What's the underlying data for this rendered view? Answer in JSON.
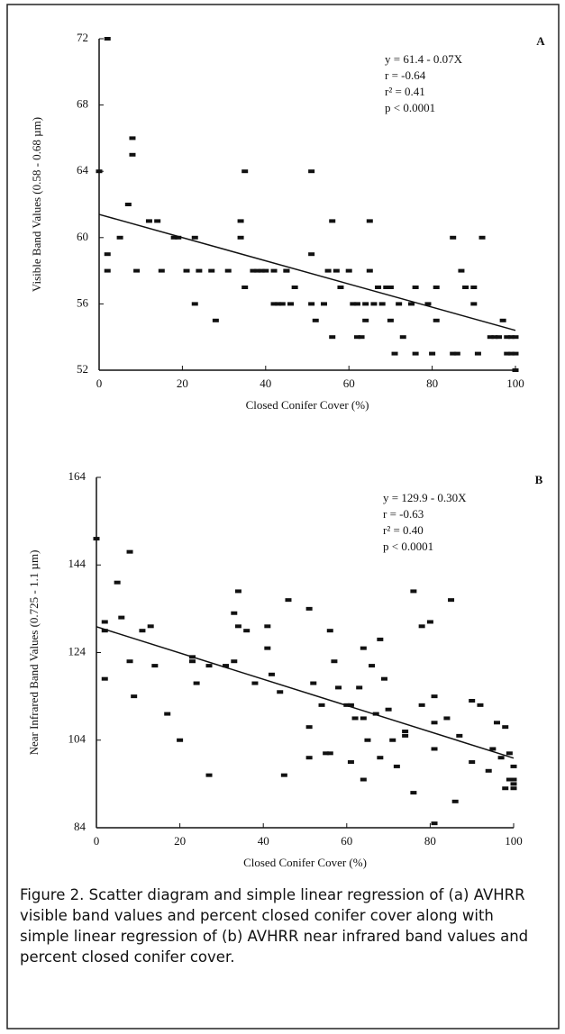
{
  "chart_data": [
    {
      "type": "scatter",
      "panel_label": "A",
      "xlabel": "Closed Conifer Cover (%)",
      "ylabel": "Visible Band Values (0.58 - 0.68 µm)",
      "annotation": [
        "y = 61.4 - 0.07X",
        "r = -0.64",
        "r² = 0.41",
        "p < 0.0001"
      ],
      "regression": {
        "intercept": 61.4,
        "slope": -0.07
      },
      "xlim": [
        0,
        100
      ],
      "xticks": [
        0,
        20,
        40,
        60,
        80,
        100
      ],
      "ylim": [
        52,
        72
      ],
      "yticks": [
        52,
        56,
        60,
        64,
        68,
        72
      ],
      "color": "#111111",
      "x": [
        0,
        2,
        2,
        2,
        5,
        7,
        8,
        8,
        9,
        12,
        14,
        15,
        18,
        19,
        21,
        23,
        23,
        24,
        27,
        28,
        31,
        34,
        34,
        35,
        35,
        37,
        38,
        39,
        40,
        42,
        42,
        43,
        44,
        45,
        45,
        46,
        47,
        51,
        51,
        51,
        52,
        54,
        55,
        56,
        56,
        57,
        58,
        60,
        61,
        62,
        62,
        63,
        64,
        64,
        65,
        65,
        66,
        67,
        68,
        69,
        70,
        70,
        71,
        72,
        73,
        75,
        76,
        76,
        79,
        80,
        81,
        81,
        85,
        85,
        86,
        87,
        88,
        90,
        90,
        91,
        92,
        94,
        95,
        96,
        97,
        98,
        98,
        99,
        99,
        100,
        100,
        100
      ],
      "values": [
        64,
        72,
        59,
        58,
        60,
        62,
        66,
        65,
        58,
        61,
        61,
        58,
        60,
        60,
        58,
        60,
        56,
        58,
        58,
        55,
        58,
        61,
        60,
        64,
        57,
        58,
        58,
        58,
        58,
        58,
        56,
        56,
        56,
        58,
        58,
        56,
        57,
        64,
        59,
        56,
        55,
        56,
        58,
        54,
        61,
        58,
        57,
        58,
        56,
        54,
        56,
        54,
        56,
        55,
        61,
        58,
        56,
        57,
        56,
        57,
        57,
        55,
        53,
        56,
        54,
        56,
        57,
        53,
        56,
        53,
        57,
        55,
        60,
        53,
        53,
        58,
        57,
        56,
        57,
        53,
        60,
        54,
        54,
        54,
        55,
        54,
        53,
        54,
        53,
        54,
        53,
        52
      ]
    },
    {
      "type": "scatter",
      "panel_label": "B",
      "xlabel": "Closed Conifer Cover (%)",
      "ylabel": "Near Infrared Band Values (0.725 - 1.1 µm)",
      "annotation": [
        "y = 129.9 - 0.30X",
        "r = -0.63",
        "r² = 0.40",
        "p < 0.0001"
      ],
      "regression": {
        "intercept": 129.9,
        "slope": -0.3
      },
      "xlim": [
        0,
        100
      ],
      "xticks": [
        0,
        20,
        40,
        60,
        80,
        100
      ],
      "ylim": [
        84,
        164
      ],
      "yticks": [
        84,
        104,
        124,
        144,
        164
      ],
      "color": "#111111",
      "x": [
        0,
        2,
        2,
        2,
        5,
        6,
        8,
        8,
        9,
        11,
        13,
        14,
        17,
        20,
        23,
        23,
        24,
        27,
        27,
        31,
        33,
        33,
        34,
        34,
        36,
        38,
        41,
        41,
        42,
        44,
        45,
        46,
        51,
        51,
        51,
        52,
        54,
        55,
        56,
        56,
        57,
        58,
        60,
        61,
        61,
        62,
        63,
        64,
        64,
        64,
        65,
        66,
        67,
        68,
        68,
        69,
        70,
        71,
        72,
        74,
        74,
        76,
        76,
        78,
        78,
        80,
        81,
        81,
        81,
        81,
        84,
        85,
        86,
        87,
        90,
        90,
        92,
        94,
        95,
        96,
        97,
        98,
        98,
        99,
        100,
        100,
        100,
        99,
        100
      ],
      "values": [
        150,
        131,
        129,
        118,
        140,
        132,
        147,
        122,
        114,
        129,
        130,
        121,
        110,
        104,
        123,
        122,
        117,
        96,
        121,
        121,
        133,
        122,
        138,
        130,
        129,
        117,
        130,
        125,
        119,
        115,
        96,
        136,
        134,
        107,
        100,
        117,
        112,
        101,
        101,
        129,
        122,
        116,
        112,
        112,
        99,
        109,
        116,
        125,
        109,
        95,
        104,
        121,
        110,
        127,
        100,
        118,
        111,
        104,
        98,
        106,
        105,
        138,
        92,
        130,
        112,
        131,
        85,
        102,
        108,
        114,
        109,
        136,
        90,
        105,
        113,
        99,
        112,
        97,
        102,
        108,
        100,
        107,
        93,
        101,
        95,
        94,
        98,
        95,
        93
      ]
    }
  ],
  "caption": "Figure 2. Scatter diagram and simple linear regression of (a) AVHRR visible band values and percent closed conifer cover along with simple linear regression of (b) AVHRR near infrared band values and percent closed conifer cover."
}
